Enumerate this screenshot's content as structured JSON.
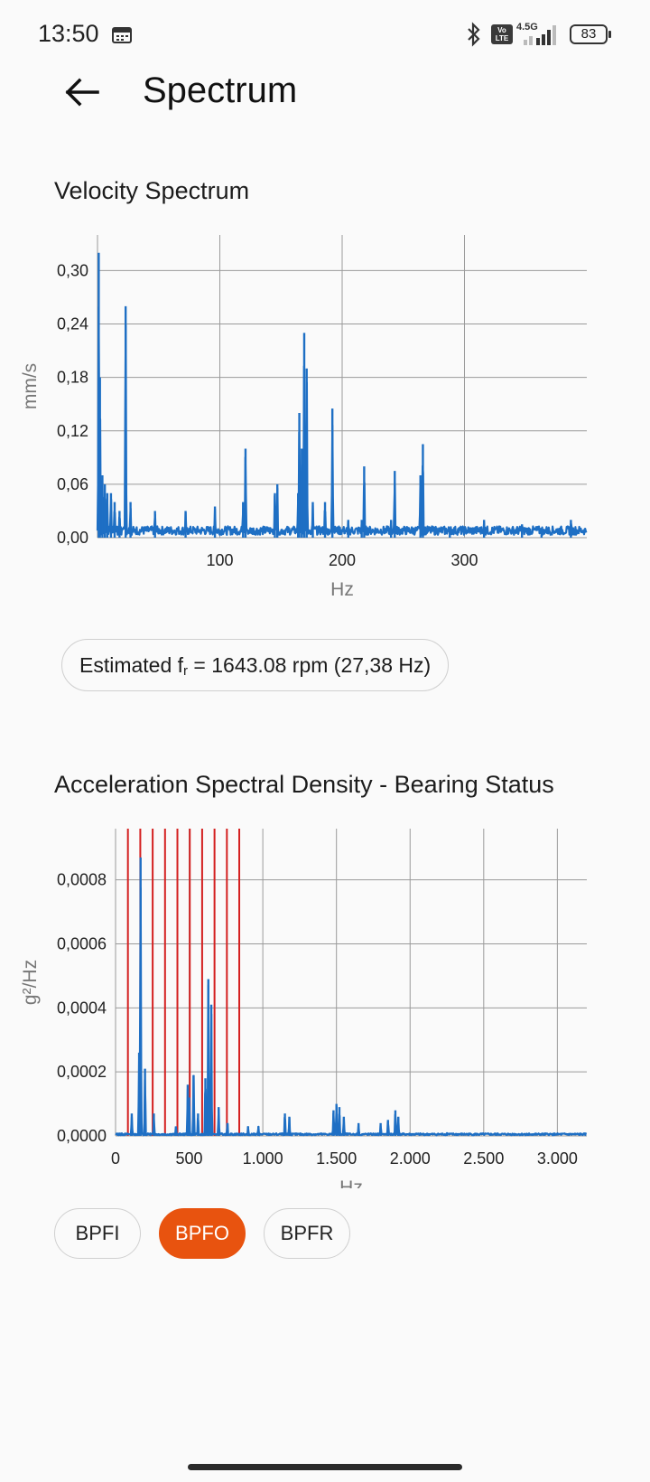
{
  "status_bar": {
    "time": "13:50",
    "network_type": "4.5G",
    "volte": "Vo LTE",
    "battery": "83"
  },
  "header": {
    "title": "Spectrum"
  },
  "velocity": {
    "title": "Velocity Spectrum",
    "chart_data": {
      "type": "line",
      "ylabel": "mm/s",
      "xlabel": "Hz",
      "xlim": [
        0,
        400
      ],
      "ylim": [
        0,
        0.34
      ],
      "x_ticks": [
        "100",
        "200",
        "300"
      ],
      "y_ticks": [
        "0,00",
        "0,06",
        "0,12",
        "0,18",
        "0,24",
        "0,30"
      ],
      "grid": true,
      "line_color": "#1e6fc4",
      "peaks": [
        [
          1,
          0.32
        ],
        [
          2,
          0.18
        ],
        [
          4,
          0.07
        ],
        [
          6,
          0.06
        ],
        [
          8,
          0.05
        ],
        [
          11,
          0.05
        ],
        [
          14,
          0.04
        ],
        [
          18,
          0.03
        ],
        [
          23,
          0.26
        ],
        [
          27,
          0.04
        ],
        [
          47,
          0.03
        ],
        [
          72,
          0.03
        ],
        [
          96,
          0.035
        ],
        [
          119,
          0.04
        ],
        [
          121,
          0.1
        ],
        [
          145,
          0.05
        ],
        [
          147,
          0.06
        ],
        [
          164,
          0.05
        ],
        [
          165,
          0.14
        ],
        [
          167,
          0.1
        ],
        [
          169,
          0.23
        ],
        [
          171,
          0.19
        ],
        [
          176,
          0.04
        ],
        [
          186,
          0.04
        ],
        [
          192,
          0.145
        ],
        [
          205,
          0.02
        ],
        [
          216,
          0.02
        ],
        [
          218,
          0.08
        ],
        [
          240,
          0.02
        ],
        [
          243,
          0.075
        ],
        [
          264,
          0.07
        ],
        [
          266,
          0.105
        ],
        [
          288,
          0.01
        ],
        [
          316,
          0.02
        ],
        [
          347,
          0.015
        ],
        [
          363,
          0.01
        ],
        [
          387,
          0.02
        ]
      ],
      "noise_floor": 0.008
    }
  },
  "estimate": {
    "text": "Estimated f",
    "sub": "r",
    "value": " = 1643.08 rpm (27,38 Hz)"
  },
  "acceleration": {
    "title": "Acceleration Spectral Density - Bearing Status",
    "chart_data": {
      "type": "line",
      "ylabel": "g²/Hz",
      "xlabel": "Hz",
      "xlim": [
        0,
        3200
      ],
      "ylim": [
        0,
        0.00096
      ],
      "x_ticks": [
        "0",
        "500",
        "1.000",
        "1.500",
        "2.000",
        "2.500",
        "3.000"
      ],
      "y_ticks": [
        "0,0000",
        "0,0002",
        "0,0004",
        "0,0006",
        "0,0008"
      ],
      "grid": true,
      "line_color": "#1e6fc4",
      "marker_color": "#d42020",
      "markers_hz": [
        84,
        168,
        252,
        336,
        420,
        504,
        588,
        672,
        756,
        840
      ],
      "peaks": [
        [
          30,
          1e-05
        ],
        [
          110,
          7e-05
        ],
        [
          160,
          0.00026
        ],
        [
          170,
          0.00087
        ],
        [
          200,
          0.00021
        ],
        [
          260,
          7e-05
        ],
        [
          410,
          3e-05
        ],
        [
          490,
          0.00016
        ],
        [
          500,
          0.00012
        ],
        [
          530,
          0.00019
        ],
        [
          560,
          7e-05
        ],
        [
          610,
          0.00018
        ],
        [
          630,
          0.00049
        ],
        [
          650,
          0.00041
        ],
        [
          700,
          9e-05
        ],
        [
          760,
          4e-05
        ],
        [
          900,
          3e-05
        ],
        [
          970,
          3e-05
        ],
        [
          1150,
          7e-05
        ],
        [
          1180,
          6e-05
        ],
        [
          1480,
          8e-05
        ],
        [
          1500,
          0.0001
        ],
        [
          1520,
          9e-05
        ],
        [
          1550,
          6e-05
        ],
        [
          1650,
          4e-05
        ],
        [
          1800,
          4e-05
        ],
        [
          1850,
          5e-05
        ],
        [
          1900,
          8e-05
        ],
        [
          1920,
          6e-05
        ],
        [
          2250,
          1e-05
        ],
        [
          2800,
          5e-06
        ]
      ],
      "noise_floor": 5e-06
    }
  },
  "toggles": [
    {
      "label": "BPFI",
      "active": false
    },
    {
      "label": "BPFO",
      "active": true
    },
    {
      "label": "BPFR",
      "active": false
    }
  ]
}
